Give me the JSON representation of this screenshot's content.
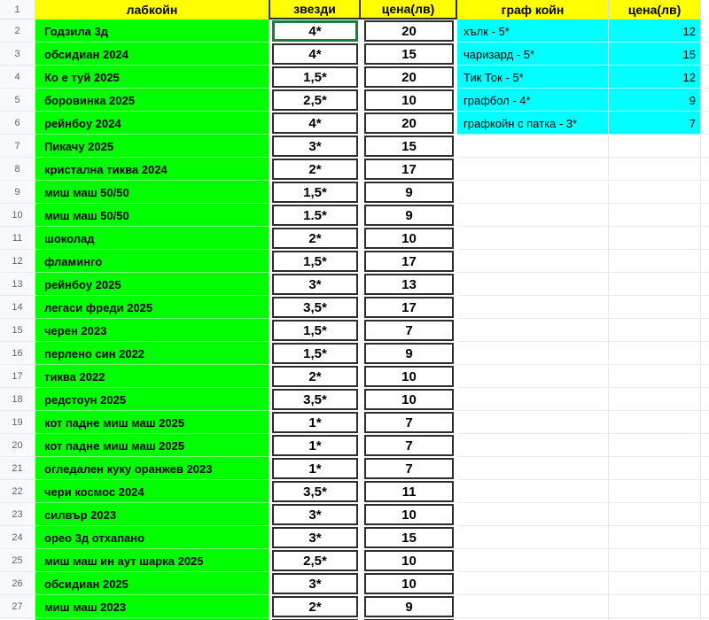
{
  "header": {
    "corner": "1",
    "labkoin": "лабкойн",
    "stars": "звезди",
    "price": "цена(лв)",
    "graphcoin": "граф койн",
    "graph_price": "цена(лв)"
  },
  "colors": {
    "header_bg": "#ffff00",
    "labcoin_bg": "#00ff00",
    "graphcoin_bg": "#00ffff",
    "cell_border": "#2d2d2d",
    "selection_border": "#188038"
  },
  "rows": [
    {
      "num": "2",
      "name": "Годзила 3д",
      "stars": "4*",
      "price": "20",
      "selected": true
    },
    {
      "num": "3",
      "name": "обсидиан 2024",
      "stars": "4*",
      "price": "15"
    },
    {
      "num": "4",
      "name": "Ко е туй 2025",
      "stars": "1,5*",
      "price": "20"
    },
    {
      "num": "5",
      "name": "боровинка 2025",
      "stars": "2,5*",
      "price": "10"
    },
    {
      "num": "6",
      "name": "рейнбоу 2024",
      "stars": "4*",
      "price": "20"
    },
    {
      "num": "7",
      "name": "Пикачу 2025",
      "stars": "3*",
      "price": "15"
    },
    {
      "num": "8",
      "name": "кристална тиква 2024",
      "stars": "2*",
      "price": "17"
    },
    {
      "num": "9",
      "name": "миш маш 50/50",
      "stars": "1,5*",
      "price": "9"
    },
    {
      "num": "10",
      "name": "миш маш 50/50",
      "stars": "1.5*",
      "price": "9"
    },
    {
      "num": "11",
      "name": "шоколад",
      "stars": "2*",
      "price": "10"
    },
    {
      "num": "12",
      "name": "фламинго",
      "stars": "1,5*",
      "price": "17"
    },
    {
      "num": "13",
      "name": "рейнбоу 2025",
      "stars": "3*",
      "price": "13"
    },
    {
      "num": "14",
      "name": "легаси фреди 2025",
      "stars": "3,5*",
      "price": "17"
    },
    {
      "num": "15",
      "name": "черен 2023",
      "stars": "1,5*",
      "price": "7"
    },
    {
      "num": "16",
      "name": "перлено син 2022",
      "stars": "1,5*",
      "price": "9"
    },
    {
      "num": "17",
      "name": "тиква 2022",
      "stars": "2*",
      "price": "10"
    },
    {
      "num": "18",
      "name": "редстоун 2025",
      "stars": "3,5*",
      "price": "10"
    },
    {
      "num": "19",
      "name": "кот падне миш маш 2025",
      "stars": "1*",
      "price": "7"
    },
    {
      "num": "20",
      "name": "кот падне миш маш 2025",
      "stars": "1*",
      "price": "7"
    },
    {
      "num": "21",
      "name": "огледален куку оранжев 2023",
      "stars": "1*",
      "price": "7"
    },
    {
      "num": "22",
      "name": "чери космос 2024",
      "stars": "3,5*",
      "price": "11"
    },
    {
      "num": "23",
      "name": "силвър 2023",
      "stars": "3*",
      "price": "10"
    },
    {
      "num": "24",
      "name": "орео 3д отхапано",
      "stars": "3*",
      "price": "15"
    },
    {
      "num": "25",
      "name": "миш маш ин аут шарка 2025",
      "stars": "2,5*",
      "price": "10"
    },
    {
      "num": "26",
      "name": "обсидиан 2025",
      "stars": "3*",
      "price": "10"
    },
    {
      "num": "27",
      "name": "миш маш 2023",
      "stars": "2*",
      "price": "9"
    }
  ],
  "graph_rows": [
    {
      "name": "хълк - 5*",
      "price": "12"
    },
    {
      "name": "чаризард - 5*",
      "price": "15"
    },
    {
      "name": "Тик Ток - 5*",
      "price": "12"
    },
    {
      "name": "графбол - 4*",
      "price": "9"
    },
    {
      "name": "графкойн с патка - 3*",
      "price": "7"
    }
  ]
}
